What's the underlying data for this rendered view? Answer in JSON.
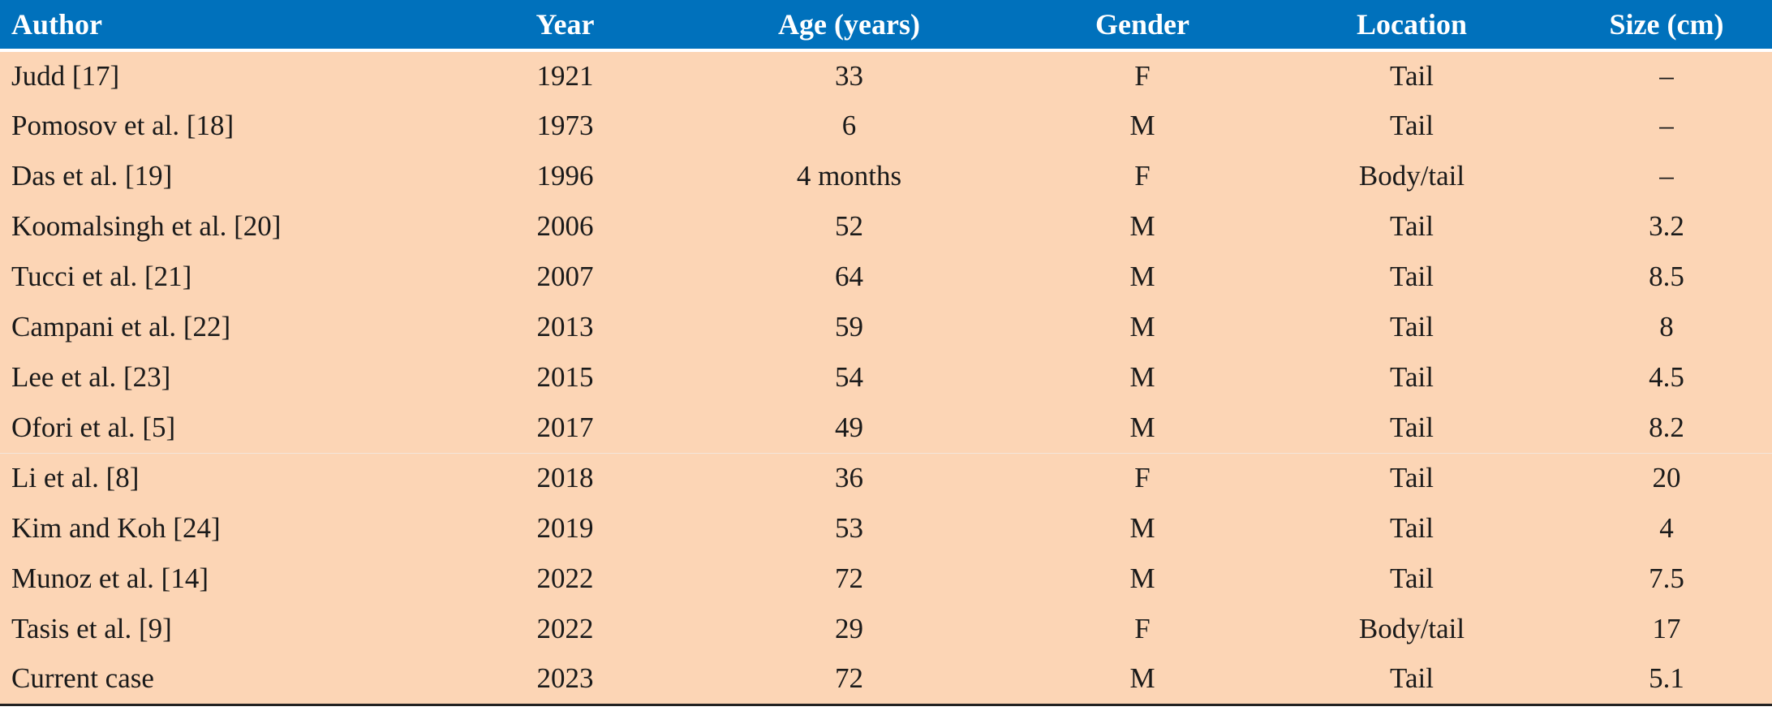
{
  "table": {
    "headers": [
      "Author",
      "Year",
      "Age (years)",
      "Gender",
      "Location",
      "Size (cm)"
    ],
    "rows": [
      [
        "Judd [17]",
        "1921",
        "33",
        "F",
        "Tail",
        "–"
      ],
      [
        "Pomosov et al. [18]",
        "1973",
        "6",
        "M",
        "Tail",
        "–"
      ],
      [
        "Das et al. [19]",
        "1996",
        "4 months",
        "F",
        "Body/tail",
        "–"
      ],
      [
        "Koomalsingh et al. [20]",
        "2006",
        "52",
        "M",
        "Tail",
        "3.2"
      ],
      [
        "Tucci et al. [21]",
        "2007",
        "64",
        "M",
        "Tail",
        "8.5"
      ],
      [
        "Campani et al. [22]",
        "2013",
        "59",
        "M",
        "Tail",
        "8"
      ],
      [
        "Lee et al. [23]",
        "2015",
        "54",
        "M",
        "Tail",
        "4.5"
      ],
      [
        "Ofori et al. [5]",
        "2017",
        "49",
        "M",
        "Tail",
        "8.2"
      ],
      [
        "Li et al. [8]",
        "2018",
        "36",
        "F",
        "Tail",
        "20"
      ],
      [
        "Kim and Koh [24]",
        "2019",
        "53",
        "M",
        "Tail",
        "4"
      ],
      [
        "Munoz et al. [14]",
        "2022",
        "72",
        "M",
        "Tail",
        "7.5"
      ],
      [
        "Tasis et al. [9]",
        "2022",
        "29",
        "F",
        "Body/tail",
        "17"
      ],
      [
        "Current case",
        "2023",
        "72",
        "M",
        "Tail",
        "5.1"
      ]
    ]
  },
  "colors": {
    "header_bg": "#0071bc",
    "header_text": "#ffffff",
    "row_bg": "#fcd5b5",
    "text": "#1a1a1a"
  }
}
